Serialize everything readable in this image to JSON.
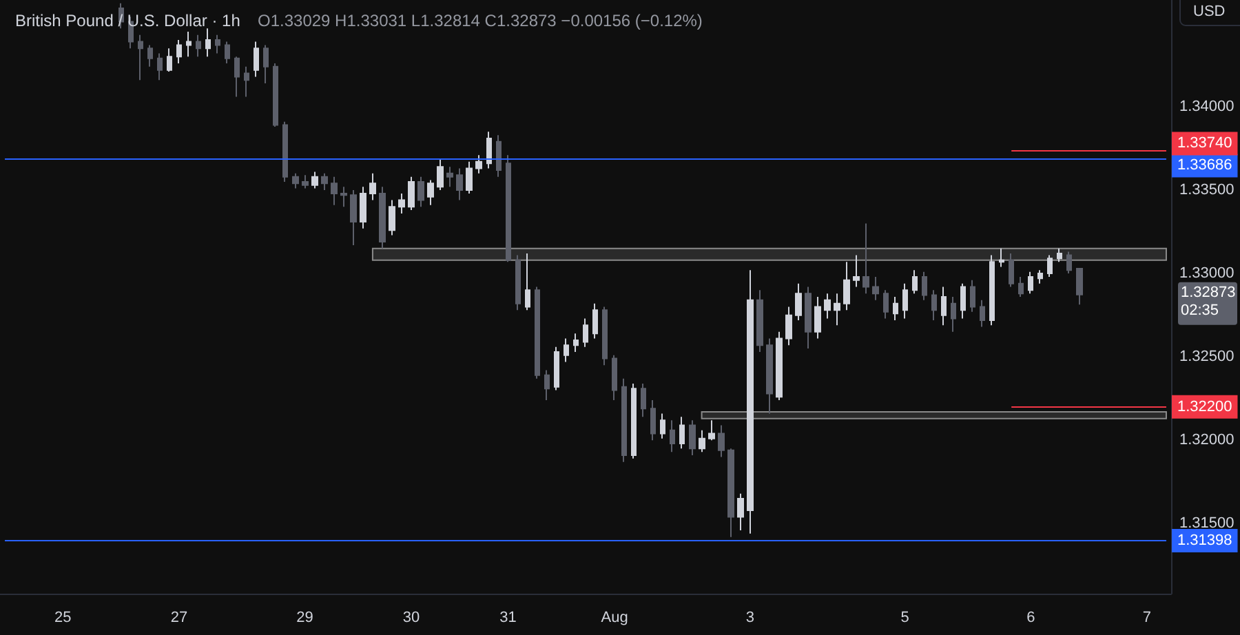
{
  "chart_data": {
    "type": "candlestick",
    "title": "British Pound / U.S. Dollar · 1h",
    "subtitle": "O1.33029 H1.33031 L1.32814 C1.32873 −0.00156 (−0.12%)",
    "categories": [
      null,
      null,
      null,
      null,
      null,
      null,
      "25",
      null,
      null,
      null,
      null,
      null,
      null,
      null,
      null,
      null,
      null,
      null,
      "27",
      null,
      null,
      null,
      null,
      null,
      null,
      null,
      null,
      null,
      null,
      null,
      null,
      "29",
      null,
      null,
      null,
      null,
      null,
      null,
      null,
      null,
      null,
      null,
      "30",
      null,
      null,
      null,
      null,
      null,
      null,
      null,
      null,
      null,
      "31",
      null,
      null,
      null,
      null,
      null,
      null,
      null,
      null,
      null,
      null,
      "Aug",
      null,
      null,
      null,
      null,
      null,
      null,
      null,
      null,
      null,
      null,
      null,
      null,
      null,
      "3",
      null,
      null,
      null,
      null,
      null,
      null,
      null,
      null,
      null,
      null,
      null,
      null,
      null,
      null,
      null,
      "5",
      null,
      null,
      null,
      null,
      null,
      null,
      null,
      null,
      null,
      null,
      null,
      null,
      "6",
      null,
      null,
      null,
      null,
      null,
      null,
      null,
      null,
      null,
      null,
      null,
      "7",
      null,
      null
    ],
    "ohlc": [
      null,
      null,
      null,
      null,
      null,
      null,
      null,
      null,
      null,
      null,
      null,
      null,
      [
        1.3459,
        1.3462,
        1.3447,
        1.3451
      ],
      [
        1.3451,
        1.3454,
        1.3435,
        1.3439
      ],
      [
        1.3439,
        1.3443,
        1.3416,
        1.3435
      ],
      [
        1.3435,
        1.3437,
        1.3424,
        1.3429
      ],
      [
        1.3429,
        1.3432,
        1.3416,
        1.3422
      ],
      [
        1.3422,
        1.3435,
        1.3421,
        1.343
      ],
      [
        1.343,
        1.344,
        1.3426,
        1.3437
      ],
      [
        1.3437,
        1.3445,
        1.343,
        1.3439
      ],
      [
        1.3439,
        1.3443,
        1.343,
        1.3435
      ],
      [
        1.3435,
        1.3447,
        1.343,
        1.344
      ],
      [
        1.344,
        1.3443,
        1.3432,
        1.3437
      ],
      [
        1.3437,
        1.3439,
        1.3426,
        1.3429
      ],
      [
        1.3429,
        1.343,
        1.3406,
        1.3418
      ],
      [
        1.342,
        1.3424,
        1.3406,
        1.3416
      ],
      [
        1.3422,
        1.3439,
        1.3418,
        1.3435
      ],
      [
        1.3435,
        1.3437,
        1.3414,
        1.3424
      ],
      [
        1.3424,
        1.3426,
        1.3388,
        1.3389
      ],
      [
        1.3389,
        1.3391,
        1.3355,
        1.3358
      ],
      [
        1.3358,
        1.336,
        1.3351,
        1.3354
      ],
      [
        1.3355,
        1.3359,
        1.3351,
        1.3353
      ],
      [
        1.3353,
        1.3361,
        1.3351,
        1.3358
      ],
      [
        1.3358,
        1.336,
        1.335,
        1.3354
      ],
      [
        1.3354,
        1.3358,
        1.3341,
        1.3348
      ],
      [
        1.3348,
        1.3352,
        1.334,
        1.3347
      ],
      [
        1.3347,
        1.335,
        1.3317,
        1.3331
      ],
      [
        1.3331,
        1.3352,
        1.3327,
        1.3348
      ],
      [
        1.3348,
        1.336,
        1.3344,
        1.3354
      ],
      [
        1.3348,
        1.3352,
        1.3315,
        1.3319
      ],
      [
        1.3326,
        1.3344,
        1.3323,
        1.334
      ],
      [
        1.334,
        1.3348,
        1.3336,
        1.3344
      ],
      [
        1.334,
        1.3358,
        1.3338,
        1.3355
      ],
      [
        1.3355,
        1.3358,
        1.334,
        1.3344
      ],
      [
        1.3346,
        1.3356,
        1.3341,
        1.3354
      ],
      [
        1.3352,
        1.3369,
        1.335,
        1.3364
      ],
      [
        1.336,
        1.3364,
        1.3352,
        1.3358
      ],
      [
        1.3359,
        1.3363,
        1.3344,
        1.335
      ],
      [
        1.335,
        1.3367,
        1.3348,
        1.3363
      ],
      [
        1.3363,
        1.3371,
        1.336,
        1.3367
      ],
      [
        1.3366,
        1.3385,
        1.3363,
        1.3381
      ],
      [
        1.3379,
        1.3383,
        1.3358,
        1.3362
      ],
      [
        1.3366,
        1.3371,
        1.3307,
        1.3308
      ],
      [
        1.3308,
        1.3311,
        1.3278,
        1.3282
      ],
      [
        1.328,
        1.3312,
        1.3278,
        1.329
      ],
      [
        1.329,
        1.3292,
        1.3237,
        1.3239
      ],
      [
        1.3239,
        1.3242,
        1.3224,
        1.3231
      ],
      [
        1.3232,
        1.3256,
        1.323,
        1.3253
      ],
      [
        1.3251,
        1.3261,
        1.3247,
        1.3257
      ],
      [
        1.3257,
        1.3264,
        1.3253,
        1.326
      ],
      [
        1.3259,
        1.3273,
        1.3256,
        1.3269
      ],
      [
        1.3264,
        1.3282,
        1.3261,
        1.3278
      ],
      [
        1.3278,
        1.328,
        1.3245,
        1.3249
      ],
      [
        1.3249,
        1.3251,
        1.3224,
        1.323
      ],
      [
        1.3232,
        1.3237,
        1.3187,
        1.3191
      ],
      [
        1.3191,
        1.3234,
        1.3189,
        1.3231
      ],
      [
        1.3231,
        1.3234,
        1.3214,
        1.3219
      ],
      [
        1.3219,
        1.3224,
        1.32,
        1.3204
      ],
      [
        1.3204,
        1.3216,
        1.3201,
        1.3212
      ],
      [
        1.3206,
        1.3212,
        1.3193,
        1.3198
      ],
      [
        1.3198,
        1.3214,
        1.3195,
        1.3209
      ],
      [
        1.3209,
        1.3212,
        1.3191,
        1.3195
      ],
      [
        1.3195,
        1.3206,
        1.3193,
        1.3201
      ],
      [
        1.3201,
        1.3212,
        1.32,
        1.3204
      ],
      [
        1.3204,
        1.3209,
        1.319,
        1.3194
      ],
      [
        1.3194,
        1.3195,
        1.3142,
        1.3154
      ],
      [
        1.3154,
        1.3168,
        1.3146,
        1.3165
      ],
      [
        1.3158,
        1.3302,
        1.3144,
        1.3284
      ],
      [
        1.3284,
        1.329,
        1.3253,
        1.3257
      ],
      [
        1.3257,
        1.3261,
        1.3216,
        1.3228
      ],
      [
        1.3226,
        1.3265,
        1.3224,
        1.3261
      ],
      [
        1.3261,
        1.328,
        1.3257,
        1.3275
      ],
      [
        1.3275,
        1.3294,
        1.3272,
        1.3288
      ],
      [
        1.3288,
        1.3292,
        1.3255,
        1.3265
      ],
      [
        1.3265,
        1.3286,
        1.3261,
        1.328
      ],
      [
        1.3278,
        1.3288,
        1.3273,
        1.3284
      ],
      [
        1.3278,
        1.3288,
        1.3269,
        1.3282
      ],
      [
        1.3282,
        1.3307,
        1.3278,
        1.3296
      ],
      [
        1.3296,
        1.3311,
        1.3292,
        1.3298
      ],
      [
        1.3298,
        1.333,
        1.3288,
        1.3292
      ],
      [
        1.3292,
        1.3298,
        1.3284,
        1.3288
      ],
      [
        1.3288,
        1.329,
        1.3273,
        1.3277
      ],
      [
        1.3276,
        1.3286,
        1.3272,
        1.3282
      ],
      [
        1.3278,
        1.3294,
        1.3273,
        1.329
      ],
      [
        1.329,
        1.3302,
        1.3288,
        1.3298
      ],
      [
        1.3298,
        1.3301,
        1.3284,
        1.3287
      ],
      [
        1.3287,
        1.329,
        1.3272,
        1.3278
      ],
      [
        1.3275,
        1.3292,
        1.3269,
        1.3286
      ],
      [
        1.3282,
        1.3286,
        1.3265,
        1.3273
      ],
      [
        1.3278,
        1.3294,
        1.3273,
        1.3292
      ],
      [
        1.3292,
        1.3296,
        1.3277,
        1.328
      ],
      [
        1.328,
        1.3284,
        1.3268,
        1.3272
      ],
      [
        1.3272,
        1.3311,
        1.3269,
        1.3307
      ],
      [
        1.3307,
        1.3315,
        1.3304,
        1.3308
      ],
      [
        1.3308,
        1.3312,
        1.3292,
        1.3294
      ],
      [
        1.3294,
        1.3298,
        1.3286,
        1.3288
      ],
      [
        1.329,
        1.3301,
        1.3288,
        1.3298
      ],
      [
        1.3297,
        1.3302,
        1.3294,
        1.33
      ],
      [
        1.33,
        1.3311,
        1.3298,
        1.3309
      ],
      [
        1.3309,
        1.3315,
        1.3307,
        1.3312
      ],
      [
        1.3311,
        1.3313,
        1.33,
        1.3302
      ],
      [
        1.33029,
        1.33031,
        1.32814,
        1.32873
      ],
      null,
      null,
      null,
      null,
      null,
      null,
      null,
      null,
      null
    ],
    "colors": [
      null,
      null,
      null,
      null,
      null,
      null,
      null,
      null,
      null,
      null,
      null,
      null,
      "#5d606b",
      "#5d606b",
      "#5d606b",
      "#5d606b",
      "#5d606b",
      "#d1d4dc",
      "#d1d4dc",
      "#d1d4dc",
      "#5d606b",
      "#d1d4dc",
      "#5d606b",
      "#5d606b",
      "#5d606b",
      "#5d606b",
      "#d1d4dc",
      "#5d606b",
      "#5d606b",
      "#5d606b",
      "#5d606b",
      "#5d606b",
      "#d1d4dc",
      "#5d606b",
      "#5d606b",
      "#5d606b",
      "#5d606b",
      "#d1d4dc",
      "#d1d4dc",
      "#5d606b",
      "#d1d4dc",
      "#d1d4dc",
      "#d1d4dc",
      "#5d606b",
      "#d1d4dc",
      "#d1d4dc",
      "#5d606b",
      "#5d606b",
      "#d1d4dc",
      "#d1d4dc",
      "#d1d4dc",
      "#5d606b",
      "#5d606b",
      "#5d606b",
      "#d1d4dc",
      "#5d606b",
      "#5d606b",
      "#d1d4dc",
      "#d1d4dc",
      "#d1d4dc",
      "#d1d4dc",
      "#d1d4dc",
      "#5d606b",
      "#5d606b",
      "#5d606b",
      "#d1d4dc",
      "#5d606b",
      "#5d606b",
      "#d1d4dc",
      "#5d606b",
      "#d1d4dc",
      "#5d606b",
      "#d1d4dc",
      "#d1d4dc",
      "#5d606b",
      "#5d606b",
      "#d1d4dc",
      "#d1d4dc",
      "#5d606b",
      "#5d606b",
      "#d1d4dc",
      "#d1d4dc",
      "#d1d4dc",
      "#5d606b",
      "#d1d4dc",
      "#d1d4dc",
      "#d1d4dc",
      "#d1d4dc",
      "#d1d4dc",
      "#5d606b",
      "#5d606b",
      "#5d606b",
      "#d1d4dc",
      "#d1d4dc",
      "#d1d4dc",
      "#5d606b",
      "#5d606b",
      "#d1d4dc",
      "#5d606b",
      "#d1d4dc",
      "#5d606b",
      "#5d606b",
      "#d1d4dc",
      "#d1d4dc",
      "#5d606b",
      "#5d606b",
      "#d1d4dc",
      "#d1d4dc",
      "#d1d4dc",
      "#d1d4dc",
      "#5d606b",
      "#5d606b",
      null,
      null,
      null,
      null,
      null,
      null,
      null,
      null,
      null
    ],
    "ylim": [
      1.3108,
      1.3464
    ],
    "yticks": [
      {
        "value": 1.315,
        "label": "1.31500"
      },
      {
        "value": 1.32,
        "label": "1.32000"
      },
      {
        "value": 1.325,
        "label": "1.32500"
      },
      {
        "value": 1.33,
        "label": "1.33000"
      },
      {
        "value": 1.335,
        "label": "1.33500"
      },
      {
        "value": 1.34,
        "label": "1.34000"
      }
    ],
    "ref_lines": [
      {
        "axis": "y",
        "value": 1.33686,
        "label": "1.33686",
        "color": "#2962ff"
      },
      {
        "axis": "y",
        "value": 1.31398,
        "label": "1.31398",
        "color": "#2962ff"
      },
      {
        "axis": "y",
        "value": 1.3374,
        "label": "1.33740",
        "color": "#f23645"
      },
      {
        "axis": "y",
        "value": 1.322,
        "label": "1.32200",
        "color": "#f23645"
      }
    ],
    "bands": [
      {
        "axis": "y",
        "from": 1.3308,
        "to": 1.3315,
        "color": "#2a2a2a"
      },
      {
        "axis": "y",
        "from": 1.3213,
        "to": 1.3217,
        "color": "#2a2a2a"
      }
    ],
    "annotations": [
      "1.32873",
      "02:35",
      "USD"
    ],
    "grid": false
  }
}
